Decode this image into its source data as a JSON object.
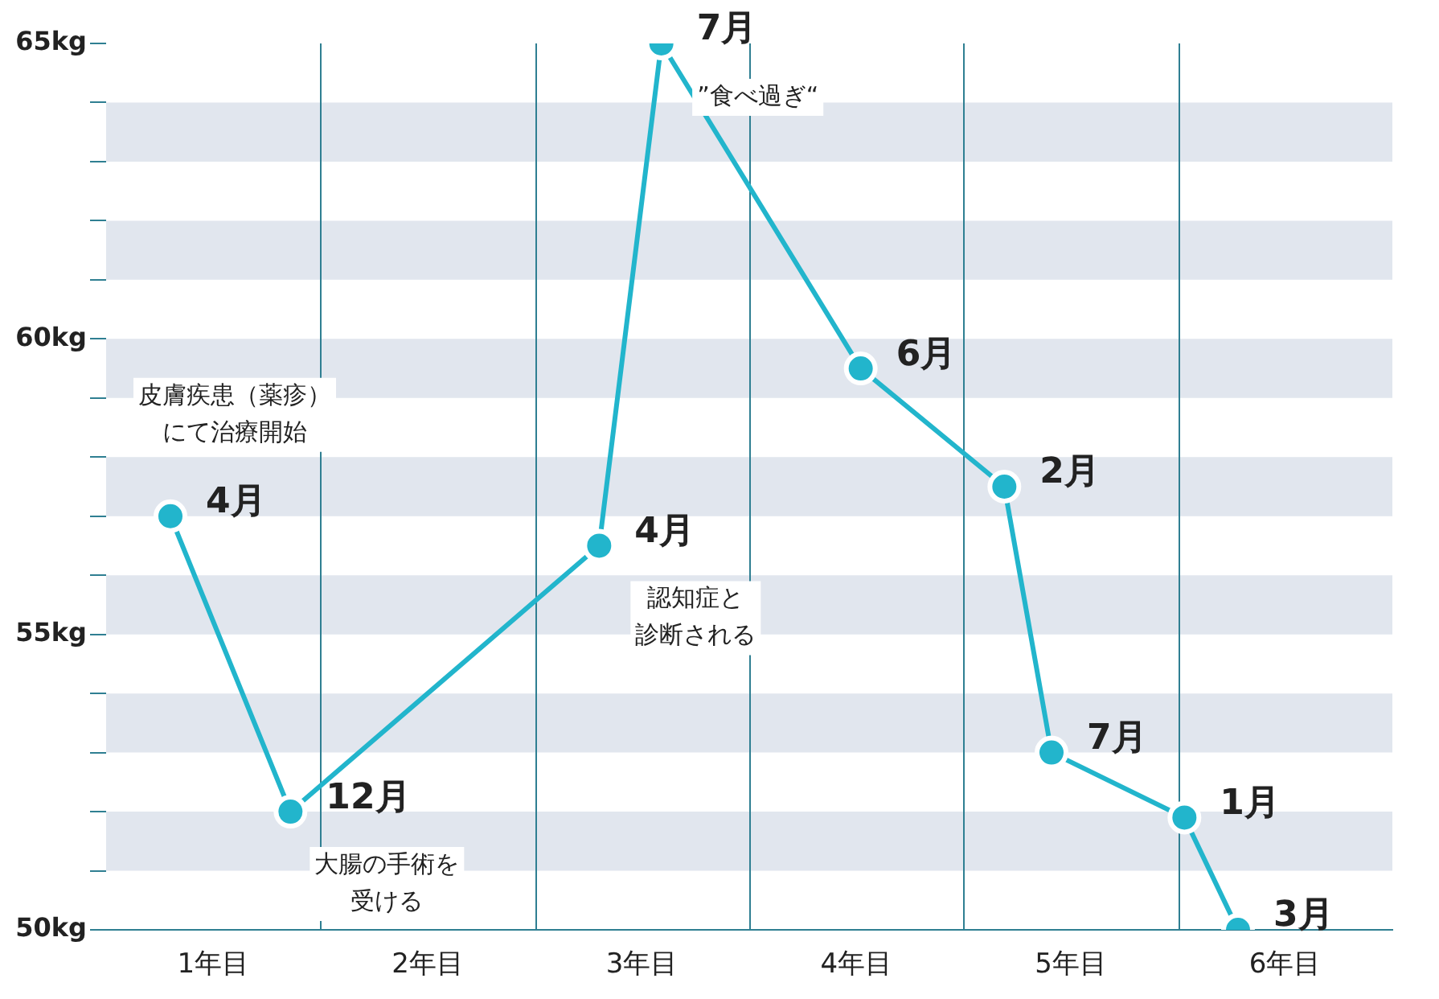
{
  "chart_data": {
    "type": "line",
    "x": [
      0.3,
      0.86,
      2.3,
      2.59,
      3.52,
      4.19,
      4.41,
      5.03,
      5.28
    ],
    "series": [
      {
        "color": "#22b5cc",
        "values": [
          57,
          52,
          56.5,
          65,
          59.5,
          57.5,
          53,
          51.9,
          50
        ]
      }
    ],
    "xlim": [
      0,
      6
    ],
    "xticks": [
      {
        "value": 0.5,
        "label": "1年目"
      },
      {
        "value": 1.5,
        "label": "2年目"
      },
      {
        "value": 2.5,
        "label": "3年目"
      },
      {
        "value": 3.5,
        "label": "4年目"
      },
      {
        "value": 4.5,
        "label": "5年目"
      },
      {
        "value": 5.5,
        "label": "6年目"
      }
    ],
    "ylim": [
      50,
      65
    ],
    "yticks": [
      {
        "value": 50,
        "label": "50kg"
      },
      {
        "value": 51,
        "label": null
      },
      {
        "value": 52,
        "label": null
      },
      {
        "value": 53,
        "label": null
      },
      {
        "value": 54,
        "label": null
      },
      {
        "value": 55,
        "label": "55kg"
      },
      {
        "value": 56,
        "label": null
      },
      {
        "value": 57,
        "label": null
      },
      {
        "value": 58,
        "label": null
      },
      {
        "value": 59,
        "label": null
      },
      {
        "value": 60,
        "label": "60kg"
      },
      {
        "value": 61,
        "label": null
      },
      {
        "value": 62,
        "label": null
      },
      {
        "value": 63,
        "label": null
      },
      {
        "value": 64,
        "label": null
      },
      {
        "value": 65,
        "label": "65kg"
      }
    ],
    "grid": false,
    "legend": false,
    "marker": "circle",
    "line_style": "solid",
    "ref_lines": [
      {
        "axis": "x",
        "value": 1,
        "color": "#2f7f92"
      },
      {
        "axis": "x",
        "value": 2,
        "color": "#2f7f92"
      },
      {
        "axis": "x",
        "value": 3,
        "color": "#2f7f92"
      },
      {
        "axis": "x",
        "value": 4,
        "color": "#2f7f92"
      },
      {
        "axis": "x",
        "value": 5,
        "color": "#2f7f92"
      }
    ],
    "bands": [
      {
        "axis": "y",
        "from": 63,
        "to": 64,
        "color": "#e1e6ee"
      },
      {
        "axis": "y",
        "from": 61,
        "to": 62,
        "color": "#e1e6ee"
      },
      {
        "axis": "y",
        "from": 59,
        "to": 60,
        "color": "#e1e6ee"
      },
      {
        "axis": "y",
        "from": 57,
        "to": 58,
        "color": "#e1e6ee"
      },
      {
        "axis": "y",
        "from": 55,
        "to": 56,
        "color": "#e1e6ee"
      },
      {
        "axis": "y",
        "from": 53,
        "to": 54,
        "color": "#e1e6ee"
      },
      {
        "axis": "y",
        "from": 51,
        "to": 52,
        "color": "#e1e6ee"
      }
    ],
    "annotations": [
      {
        "text": "4月",
        "x": 0.3,
        "y": 57
      },
      {
        "text": "12月",
        "x": 0.86,
        "y": 52
      },
      {
        "text": "4月",
        "x": 2.3,
        "y": 56.5
      },
      {
        "text": "7月",
        "x": 2.59,
        "y": 65
      },
      {
        "text": "6月",
        "x": 3.52,
        "y": 59.5
      },
      {
        "text": "2月",
        "x": 4.19,
        "y": 57.5
      },
      {
        "text": "7月",
        "x": 4.41,
        "y": 53
      },
      {
        "text": "1月",
        "x": 5.03,
        "y": 51.9
      },
      {
        "text": "3月",
        "x": 5.28,
        "y": 50
      },
      {
        "text": "皮膚疾患（薬疹）にて治療開始",
        "x": 0.3,
        "y": 57
      },
      {
        "text": "”食べ過ぎ“",
        "x": 2.59,
        "y": 65
      },
      {
        "text": "認知症と診断される",
        "x": 2.3,
        "y": 56.5
      },
      {
        "text": "大腸の手術を受ける",
        "x": 0.86,
        "y": 52
      }
    ]
  }
}
